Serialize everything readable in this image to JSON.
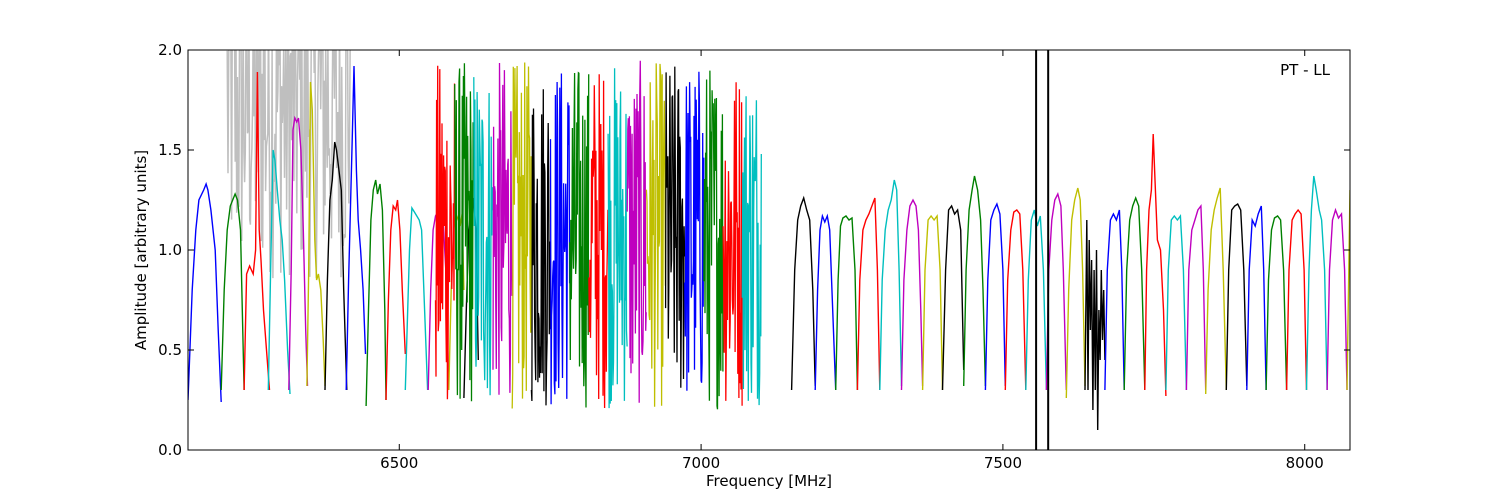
{
  "chart_data": {
    "type": "line",
    "title": "",
    "xlabel": "Frequency [MHz]",
    "ylabel": "Amplitude [arbitrary units]",
    "annotation": "PT - LL",
    "xlim": [
      6150,
      8075
    ],
    "ylim": [
      0.0,
      2.0
    ],
    "x_ticks": [
      6500,
      7000,
      7500,
      8000
    ],
    "y_ticks": [
      0.0,
      0.5,
      1.0,
      1.5,
      2.0
    ],
    "x_tick_labels": [
      "6500",
      "7000",
      "7500",
      "8000"
    ],
    "y_tick_labels": [
      "0.0",
      "0.5",
      "1.0",
      "1.5",
      "2.0"
    ],
    "grid": false,
    "legend": "none",
    "colors": {
      "flagged_background": "#bfbfbf",
      "cycle": [
        "#0000ff",
        "#008000",
        "#ff0000",
        "#00bfbf",
        "#bf00bf",
        "#bfbf00",
        "#000000"
      ]
    },
    "series": [
      {
        "color": "#0000ff",
        "x": [
          6150,
          6157,
          6163,
          6168,
          6176,
          6180,
          6183,
          6188,
          6195,
          6200,
          6205
        ],
        "y": [
          0.25,
          0.8,
          1.1,
          1.25,
          1.3,
          1.33,
          1.3,
          1.2,
          1.0,
          0.6,
          0.24
        ]
      },
      {
        "color": "#008000",
        "x": [
          6205,
          6210,
          6215,
          6220,
          6228,
          6232,
          6237,
          6240,
          6243
        ],
        "y": [
          0.3,
          0.8,
          1.1,
          1.22,
          1.28,
          1.25,
          1.1,
          0.7,
          0.3
        ]
      },
      {
        "color": "#ff0000",
        "x": [
          6243,
          6247,
          6252,
          6258,
          6262,
          6265,
          6268,
          6271,
          6275,
          6280,
          6285
        ],
        "y": [
          0.3,
          0.88,
          0.92,
          0.88,
          1.0,
          1.89,
          1.1,
          0.95,
          0.7,
          0.5,
          0.3
        ]
      },
      {
        "color": "#00bfbf",
        "x": [
          6283,
          6287,
          6291,
          6294,
          6298,
          6302,
          6306,
          6310,
          6315,
          6319
        ],
        "y": [
          0.3,
          0.92,
          1.5,
          1.45,
          1.3,
          1.15,
          1.05,
          0.85,
          0.5,
          0.28
        ]
      },
      {
        "color": "#bf00bf",
        "x": [
          6317,
          6321,
          6324,
          6327,
          6330,
          6333,
          6337,
          6341,
          6345,
          6348
        ],
        "y": [
          0.3,
          0.9,
          1.6,
          1.66,
          1.64,
          1.66,
          1.5,
          1.1,
          0.6,
          0.32
        ]
      },
      {
        "color": "#bfbf00",
        "x": [
          6347,
          6350,
          6353,
          6356,
          6360,
          6363,
          6366,
          6370,
          6374,
          6377
        ],
        "y": [
          0.32,
          0.9,
          1.84,
          1.7,
          1.05,
          0.85,
          0.88,
          0.8,
          0.55,
          0.32
        ]
      },
      {
        "color": "#000000",
        "x": [
          6377,
          6381,
          6385,
          6389,
          6393,
          6396,
          6400,
          6404,
          6408,
          6413
        ],
        "y": [
          0.3,
          0.85,
          1.25,
          1.35,
          1.54,
          1.5,
          1.4,
          1.3,
          0.8,
          0.3
        ]
      },
      {
        "color": "#0000ff",
        "x": [
          6412,
          6416,
          6419,
          6422,
          6425,
          6429,
          6432,
          6436,
          6440,
          6444
        ],
        "y": [
          0.3,
          0.85,
          1.2,
          1.55,
          1.92,
          1.4,
          1.15,
          1.0,
          0.8,
          0.48
        ]
      },
      {
        "color": "#008000",
        "x": [
          6445,
          6449,
          6453,
          6457,
          6461,
          6464,
          6468,
          6472,
          6476,
          6478
        ],
        "y": [
          0.22,
          0.7,
          1.15,
          1.3,
          1.35,
          1.28,
          1.33,
          1.2,
          0.7,
          0.25
        ]
      },
      {
        "color": "#ff0000",
        "x": [
          6478,
          6482,
          6486,
          6490,
          6494,
          6497,
          6501,
          6505,
          6510
        ],
        "y": [
          0.25,
          0.75,
          1.1,
          1.22,
          1.2,
          1.25,
          1.1,
          0.8,
          0.48
        ]
      },
      {
        "color": "#00bfbf",
        "x": [
          6510,
          6513,
          6517,
          6521,
          6525,
          6529,
          6533,
          6537,
          6542,
          6547
        ],
        "y": [
          0.3,
          0.6,
          1.0,
          1.21,
          1.19,
          1.17,
          1.15,
          1.1,
          0.7,
          0.3
        ]
      },
      {
        "color": "#bf00bf",
        "x": [
          6548,
          6552,
          6556,
          6560,
          6564,
          6569,
          6573,
          6577,
          6582
        ],
        "y": [
          0.3,
          0.8,
          1.1,
          1.17,
          1.19,
          1.17,
          1.13,
          0.9,
          0.3
        ]
      },
      {
        "color": "#bfbf00",
        "x": [
          6582,
          6586,
          6590,
          6594,
          6598,
          6601,
          6604,
          6607
        ],
        "y": [
          0.3,
          0.8,
          1.1,
          1.18,
          1.15,
          1.12,
          1.18,
          0.8
        ]
      },
      {
        "color": "#000000",
        "x": [
          6607,
          6611,
          6615,
          6619,
          6623,
          6627,
          6631
        ],
        "y": [
          0.26,
          0.7,
          1.1,
          1.22,
          1.26,
          1.1,
          0.45
        ]
      },
      {
        "color": "#000000",
        "x": [
          7150,
          7155,
          7160,
          7165,
          7170,
          7175,
          7180,
          7185,
          7189
        ],
        "y": [
          0.3,
          0.9,
          1.15,
          1.22,
          1.26,
          1.2,
          1.15,
          0.8,
          0.32
        ]
      },
      {
        "color": "#0000ff",
        "x": [
          7189,
          7193,
          7197,
          7201,
          7205,
          7209,
          7213,
          7218,
          7223
        ],
        "y": [
          0.3,
          0.8,
          1.1,
          1.17,
          1.14,
          1.17,
          1.1,
          0.7,
          0.3
        ]
      },
      {
        "color": "#008000",
        "x": [
          7223,
          7227,
          7231,
          7235,
          7240,
          7245,
          7250,
          7255,
          7259
        ],
        "y": [
          0.3,
          0.85,
          1.12,
          1.16,
          1.17,
          1.15,
          1.16,
          0.9,
          0.3
        ]
      },
      {
        "color": "#ff0000",
        "x": [
          7259,
          7263,
          7268,
          7273,
          7278,
          7283,
          7288,
          7292,
          7296
        ],
        "y": [
          0.3,
          0.85,
          1.1,
          1.15,
          1.18,
          1.22,
          1.26,
          0.9,
          0.3
        ]
      },
      {
        "color": "#00bfbf",
        "x": [
          7296,
          7300,
          7305,
          7310,
          7315,
          7320,
          7324,
          7328,
          7332
        ],
        "y": [
          0.3,
          0.85,
          1.1,
          1.2,
          1.25,
          1.35,
          1.3,
          0.9,
          0.32
        ]
      },
      {
        "color": "#bf00bf",
        "x": [
          7332,
          7336,
          7341,
          7346,
          7351,
          7356,
          7360,
          7364,
          7367
        ],
        "y": [
          0.3,
          0.85,
          1.1,
          1.22,
          1.25,
          1.22,
          1.1,
          0.7,
          0.32
        ]
      },
      {
        "color": "#bfbf00",
        "x": [
          7367,
          7371,
          7376,
          7381,
          7386,
          7391,
          7396,
          7400
        ],
        "y": [
          0.3,
          0.9,
          1.15,
          1.17,
          1.15,
          1.17,
          0.9,
          0.3
        ]
      },
      {
        "color": "#000000",
        "x": [
          7400,
          7405,
          7410,
          7415,
          7420,
          7425,
          7430,
          7435
        ],
        "y": [
          0.3,
          0.9,
          1.2,
          1.22,
          1.18,
          1.2,
          1.1,
          0.4
        ]
      },
      {
        "color": "#008000",
        "x": [
          7435,
          7439,
          7444,
          7449,
          7453,
          7458,
          7463,
          7467,
          7471
        ],
        "y": [
          0.32,
          0.9,
          1.2,
          1.3,
          1.37,
          1.3,
          1.15,
          0.8,
          0.32
        ]
      },
      {
        "color": "#0000ff",
        "x": [
          7471,
          7475,
          7480,
          7485,
          7490,
          7495,
          7500,
          7504
        ],
        "y": [
          0.3,
          0.85,
          1.15,
          1.2,
          1.23,
          1.18,
          0.9,
          0.32
        ]
      },
      {
        "color": "#ff0000",
        "x": [
          7504,
          7508,
          7513,
          7518,
          7523,
          7528,
          7533,
          7538
        ],
        "y": [
          0.3,
          0.85,
          1.1,
          1.19,
          1.2,
          1.18,
          0.9,
          0.3
        ]
      },
      {
        "color": "#00bfbf",
        "x": [
          7538,
          7542,
          7547,
          7552,
          7557,
          7562,
          7567,
          7572
        ],
        "y": [
          0.3,
          0.85,
          1.15,
          1.2,
          1.12,
          1.17,
          0.9,
          0.3
        ]
      },
      {
        "color": "#bf00bf",
        "x": [
          7572,
          7576,
          7581,
          7586,
          7591,
          7596,
          7600,
          7605
        ],
        "y": [
          0.3,
          0.9,
          1.15,
          1.25,
          1.28,
          1.22,
          0.9,
          0.3
        ]
      },
      {
        "color": "#bfbf00",
        "x": [
          7605,
          7609,
          7614,
          7619,
          7624,
          7628,
          7632,
          7636
        ],
        "y": [
          0.26,
          0.8,
          1.15,
          1.25,
          1.31,
          1.25,
          0.9,
          0.32
        ]
      },
      {
        "color": "#000000",
        "x": [
          7636,
          7639,
          7641,
          7643,
          7645,
          7647,
          7649,
          7651,
          7653,
          7655,
          7657,
          7659,
          7661,
          7663,
          7665,
          7667,
          7669
        ],
        "y": [
          0.3,
          1.15,
          0.3,
          1.05,
          0.6,
          0.95,
          0.2,
          0.9,
          0.3,
          1.0,
          0.1,
          0.7,
          0.45,
          0.9,
          0.55,
          0.8,
          0.45
        ]
      },
      {
        "color": "#0000ff",
        "x": [
          7669,
          7673,
          7678,
          7683,
          7688,
          7693,
          7697,
          7701
        ],
        "y": [
          0.3,
          0.9,
          1.15,
          1.18,
          1.15,
          1.2,
          0.9,
          0.3
        ]
      },
      {
        "color": "#008000",
        "x": [
          7701,
          7705,
          7710,
          7715,
          7720,
          7725,
          7730,
          7735
        ],
        "y": [
          0.3,
          0.9,
          1.15,
          1.22,
          1.26,
          1.22,
          0.9,
          0.3
        ]
      },
      {
        "color": "#ff0000",
        "x": [
          7735,
          7738,
          7742,
          7746,
          7749,
          7752,
          7756,
          7761,
          7766,
          7770
        ],
        "y": [
          0.3,
          0.9,
          1.2,
          1.3,
          1.58,
          1.35,
          1.05,
          1.0,
          0.7,
          0.27
        ]
      },
      {
        "color": "#00bfbf",
        "x": [
          7770,
          7774,
          7779,
          7784,
          7789,
          7794,
          7799,
          7804
        ],
        "y": [
          0.3,
          0.9,
          1.15,
          1.17,
          1.15,
          1.17,
          0.9,
          0.3
        ]
      },
      {
        "color": "#bf00bf",
        "x": [
          7804,
          7808,
          7813,
          7818,
          7823,
          7828,
          7832,
          7836
        ],
        "y": [
          0.3,
          0.9,
          1.1,
          1.15,
          1.2,
          1.22,
          0.9,
          0.3
        ]
      },
      {
        "color": "#bfbf00",
        "x": [
          7836,
          7840,
          7845,
          7850,
          7855,
          7860,
          7865,
          7870
        ],
        "y": [
          0.28,
          0.8,
          1.1,
          1.2,
          1.26,
          1.31,
          0.9,
          0.3
        ]
      },
      {
        "color": "#000000",
        "x": [
          7870,
          7874,
          7879,
          7884,
          7889,
          7894,
          7899,
          7904
        ],
        "y": [
          0.3,
          0.9,
          1.2,
          1.22,
          1.23,
          1.2,
          0.9,
          0.32
        ]
      },
      {
        "color": "#0000ff",
        "x": [
          7904,
          7908,
          7913,
          7918,
          7923,
          7928,
          7932,
          7936
        ],
        "y": [
          0.3,
          0.9,
          1.15,
          1.12,
          1.18,
          1.22,
          0.9,
          0.3
        ]
      },
      {
        "color": "#008000",
        "x": [
          7936,
          7940,
          7945,
          7950,
          7955,
          7960,
          7965,
          7970
        ],
        "y": [
          0.3,
          0.85,
          1.1,
          1.16,
          1.17,
          1.15,
          0.9,
          0.3
        ]
      },
      {
        "color": "#ff0000",
        "x": [
          7970,
          7974,
          7979,
          7984,
          7989,
          7994,
          7999,
          8003
        ],
        "y": [
          0.3,
          0.9,
          1.15,
          1.18,
          1.2,
          1.18,
          0.9,
          0.3
        ]
      },
      {
        "color": "#00bfbf",
        "x": [
          8003,
          8007,
          8011,
          8015,
          8019,
          8024,
          8028,
          8033,
          8037
        ],
        "y": [
          0.3,
          0.9,
          1.2,
          1.37,
          1.3,
          1.2,
          1.15,
          0.9,
          0.3
        ]
      },
      {
        "color": "#bf00bf",
        "x": [
          8037,
          8041,
          8046,
          8051,
          8056,
          8061,
          8066,
          8070
        ],
        "y": [
          0.3,
          0.9,
          1.15,
          1.2,
          1.16,
          1.18,
          0.9,
          0.3
        ]
      },
      {
        "color": "#bfbf00",
        "x": [
          8070,
          8073,
          8075
        ],
        "y": [
          0.3,
          0.9,
          1.3
        ]
      }
    ],
    "dense_region": {
      "x_start": 6560,
      "x_end": 7100,
      "y_min": 0.05,
      "y_max": 2.0,
      "color_order": [
        "#ff0000",
        "#008000",
        "#00bfbf",
        "#bf00bf",
        "#bfbf00",
        "#000000",
        "#0000ff",
        "#008000",
        "#ff0000",
        "#00bfbf",
        "#bf00bf",
        "#bfbf00",
        "#000000",
        "#0000ff",
        "#008000",
        "#ff0000",
        "#00bfbf"
      ]
    },
    "flagged_background_region": {
      "x_start": 6215,
      "x_end": 6420,
      "y_min": 0.85,
      "y_max": 2.0
    },
    "vertical_spikes": [
      {
        "x": 7555,
        "color": "#000000"
      },
      {
        "x": 7575,
        "color": "#000000"
      }
    ]
  }
}
